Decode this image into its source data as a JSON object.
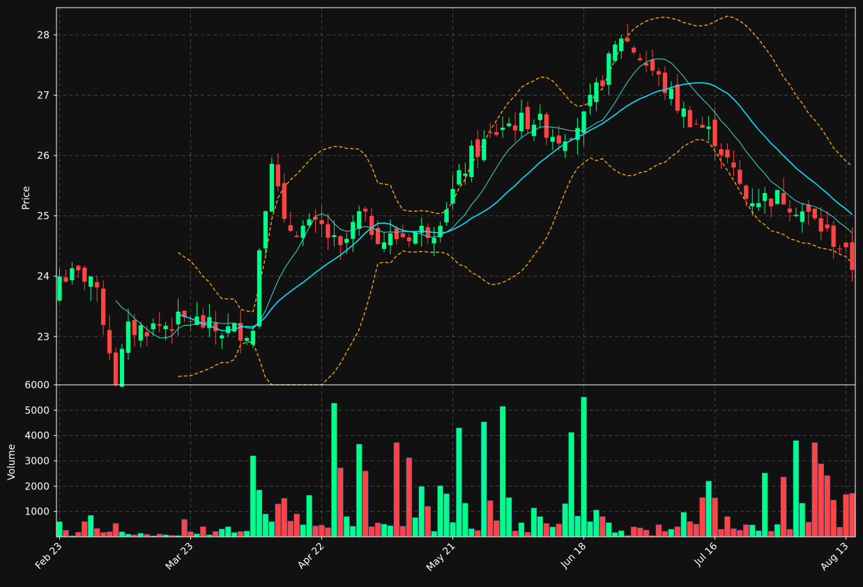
{
  "chart_data": {
    "type": "candlestick",
    "colors": {
      "background": "#111111",
      "up": "#00ff88",
      "down": "#ff4444",
      "ma_fast": "#40e0d0",
      "ma_slow": "#00e5ff",
      "bollinger": "#ffa500",
      "grid": "#444444",
      "text": "#ffffff"
    },
    "x_tick_labels": [
      "Feb 23",
      "Mar 23",
      "Apr 22",
      "May 21",
      "Jun 18",
      "Jul 16",
      "Aug 13"
    ],
    "x_tick_index": [
      0,
      21,
      42,
      63,
      84,
      105,
      126
    ],
    "price_panel": {
      "ylabel": "Price",
      "ylim": [
        22.2,
        28.45
      ],
      "yticks": [
        23,
        24,
        25,
        26,
        27,
        28
      ]
    },
    "volume_panel": {
      "ylabel": "Volume",
      "ylim": [
        0,
        6000
      ],
      "yticks": [
        1000,
        2000,
        3000,
        4000,
        5000,
        6000
      ]
    },
    "anchors": [
      [
        0,
        24.0
      ],
      [
        5,
        24.0
      ],
      [
        7,
        23.3
      ],
      [
        9,
        22.3
      ],
      [
        11,
        23.1
      ],
      [
        17,
        23.2
      ],
      [
        21,
        23.3
      ],
      [
        25,
        23.1
      ],
      [
        28,
        23.1
      ],
      [
        31,
        23.1
      ],
      [
        32,
        24.5
      ],
      [
        34,
        26.0
      ],
      [
        36,
        24.8
      ],
      [
        42,
        24.8
      ],
      [
        45,
        24.4
      ],
      [
        48,
        25.0
      ],
      [
        52,
        24.6
      ],
      [
        60,
        24.8
      ],
      [
        62,
        25.2
      ],
      [
        66,
        26.0
      ],
      [
        71,
        26.5
      ],
      [
        76,
        26.6
      ],
      [
        80,
        26.3
      ],
      [
        84,
        26.6
      ],
      [
        87,
        27.3
      ],
      [
        90,
        28.0
      ],
      [
        95,
        27.4
      ],
      [
        100,
        26.7
      ],
      [
        105,
        26.3
      ],
      [
        110,
        25.3
      ],
      [
        116,
        25.3
      ],
      [
        120,
        25.0
      ],
      [
        125,
        24.5
      ],
      [
        128,
        24.0
      ],
      [
        132,
        23.8
      ]
    ],
    "volume": [
      600,
      260,
      40,
      180,
      600,
      850,
      330,
      170,
      200,
      530,
      200,
      110,
      80,
      140,
      100,
      40,
      110,
      80,
      60,
      50,
      690,
      200,
      120,
      400,
      80,
      210,
      310,
      400,
      170,
      210,
      230,
      3200,
      1850,
      900,
      600,
      1300,
      1520,
      620,
      900,
      480,
      1640,
      430,
      460,
      360,
      5280,
      2720,
      800,
      420,
      3660,
      2600,
      400,
      550,
      500,
      440,
      3720,
      420,
      3120,
      760,
      1990,
      1200,
      220,
      2020,
      1700,
      570,
      4300,
      1330,
      320,
      250,
      4540,
      1430,
      640,
      5150,
      1550,
      230,
      560,
      180,
      1140,
      800,
      530,
      390,
      510,
      1310,
      4120,
      820,
      5520,
      600,
      1060,
      800,
      560,
      170,
      240,
      50,
      390,
      350,
      270,
      50,
      480,
      220,
      300,
      400,
      970,
      600,
      500,
      1550,
      2200,
      1540,
      300,
      800,
      320,
      260,
      480,
      470,
      240,
      2520,
      220,
      490,
      2360,
      300,
      3800,
      1330,
      580,
      3720,
      2880,
      2420,
      1450,
      380,
      1670,
      1720
    ],
    "ma_fast_period": 10,
    "ma_slow_period": 20,
    "bollinger_period": 20
  }
}
